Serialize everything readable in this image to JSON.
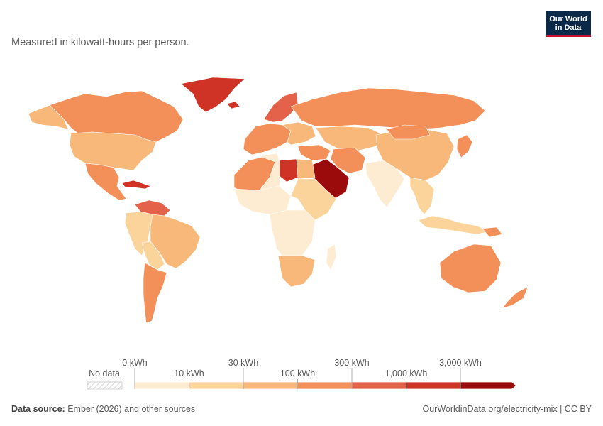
{
  "subtitle": "Measured in kilowatt-hours per person.",
  "logo": {
    "line1": "Our World",
    "line2": "in Data"
  },
  "legend": {
    "no_data": "No data",
    "ticks_top": [
      "0 kWh",
      "30 kWh",
      "300 kWh",
      "3,000 kWh"
    ],
    "ticks_bottom": [
      "10 kWh",
      "100 kWh",
      "1,000 kWh"
    ],
    "bins": [
      {
        "color": "#fdecd2"
      },
      {
        "color": "#fbd49b"
      },
      {
        "color": "#f8b87a"
      },
      {
        "color": "#f3905a"
      },
      {
        "color": "#e4624a"
      },
      {
        "color": "#cf3325"
      },
      {
        "color": "#9b0b0b"
      }
    ]
  },
  "colors": {
    "c1": "#fdecd2",
    "c2": "#fbd49b",
    "c3": "#f8b87a",
    "c4": "#f3905a",
    "c5": "#e4624a",
    "c6": "#cf3325",
    "c7": "#9b0b0b",
    "border": "#ffffff"
  },
  "footer": {
    "source_label": "Data source:",
    "source_text": "Ember (2026) and other sources",
    "right": "OurWorldinData.org/electricity-mix | CC BY"
  }
}
